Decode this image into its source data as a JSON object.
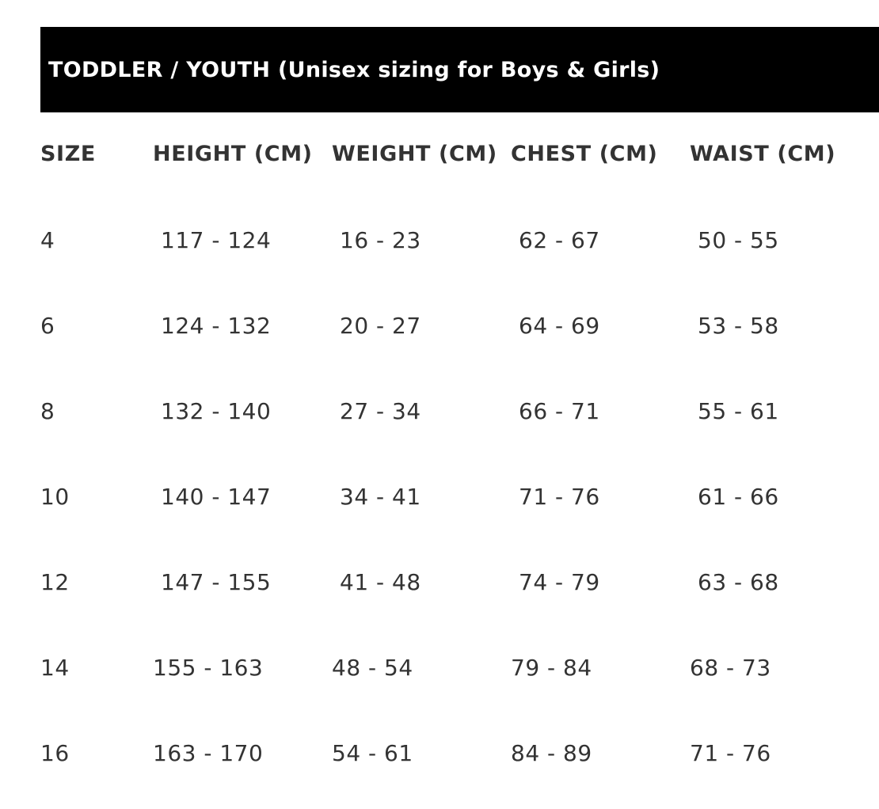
{
  "title": "TODDLER / YOUTH (Unisex sizing for Boys & Girls)",
  "columns": [
    "SIZE",
    "HEIGHT (CM)",
    "WEIGHT (CM)",
    "CHEST (CM)",
    "WAIST (CM)"
  ],
  "rows": [
    [
      "4",
      "117 - 124",
      "16 - 23",
      "62 - 67",
      "50 - 55"
    ],
    [
      "6",
      "124 - 132",
      "20 - 27",
      "64 - 69",
      "53 - 58"
    ],
    [
      "8",
      "132 - 140",
      "27 - 34",
      "66 - 71",
      "55 - 61"
    ],
    [
      "10",
      "140 - 147",
      "34 - 41",
      "71 - 76",
      "61 - 66"
    ],
    [
      "12",
      "147 - 155",
      "41 - 48",
      "74 - 79",
      "63 - 68"
    ],
    [
      "14",
      "155 - 163",
      "48 - 54",
      "79 - 84",
      "68 - 73"
    ],
    [
      "16",
      "163 - 170",
      "54 - 61",
      "84 - 89",
      "71 - 76"
    ]
  ]
}
